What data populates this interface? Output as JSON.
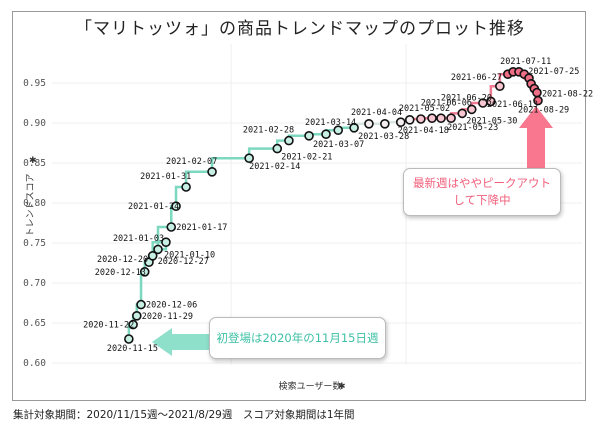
{
  "title": "「マリトッツォ」の商品トレンドマップのプロット推移",
  "footer": "集計対象期間：2020/11/15週〜2021/8/29週　スコア対象期間は1年間",
  "annotations": {
    "right_note": "最新週はややピークアウト\nして下降中",
    "left_note": "初登場は2020年の11月15日週"
  },
  "colors": {
    "early_line": "#7dd8c0",
    "early_fill": "#c8efe3",
    "late_line": "#f07a92",
    "late_fill": "#f7c6d0",
    "peak_fill": "#ef6f86",
    "arrow_left": "#8fe0cb",
    "arrow_right": "#f9788f"
  },
  "chart_data": {
    "type": "line",
    "title": "「マリトッツォ」の商品トレンドマップのプロット推移",
    "xlabel": "検索ユーザー数",
    "ylabel": "トレンドスコア",
    "xlim": [
      0,
      100
    ],
    "ylim": [
      0.6,
      0.975
    ],
    "yticks": [
      "0.60",
      "0.65",
      "0.70",
      "0.75",
      "0.80",
      "0.85",
      "0.90",
      "0.95"
    ],
    "ytick_values": [
      0.6,
      0.65,
      0.7,
      0.75,
      0.8,
      0.85,
      0.9,
      0.95
    ],
    "xgrid_values": [
      33.8,
      66.8
    ],
    "grid": true,
    "points": [
      {
        "date": "2020-11-15",
        "x": 14.5,
        "y": 0.63,
        "label": true,
        "phase": "early"
      },
      {
        "date": "2020-11-22",
        "x": 15.3,
        "y": 0.648,
        "label": true,
        "phase": "early"
      },
      {
        "date": "2020-11-29",
        "x": 16.0,
        "y": 0.659,
        "label": true,
        "phase": "early"
      },
      {
        "date": "2020-12-06",
        "x": 16.8,
        "y": 0.673,
        "label": true,
        "phase": "early"
      },
      {
        "date": "2020-12-13",
        "x": 17.5,
        "y": 0.714,
        "label": true,
        "phase": "early"
      },
      {
        "date": "2020-12-20",
        "x": 18.3,
        "y": 0.726,
        "label": true,
        "phase": "early"
      },
      {
        "date": "2020-12-27",
        "x": 19.0,
        "y": 0.734,
        "label": true,
        "phase": "early"
      },
      {
        "date": "2021-01-03",
        "x": 21.5,
        "y": 0.751,
        "label": true,
        "phase": "early"
      },
      {
        "date": "2021-01-10",
        "x": 20.0,
        "y": 0.742,
        "label": true,
        "phase": "early"
      },
      {
        "date": "2021-01-17",
        "x": 22.5,
        "y": 0.77,
        "label": true,
        "phase": "early"
      },
      {
        "date": "2021-01-24",
        "x": 23.4,
        "y": 0.796,
        "label": true,
        "phase": "early"
      },
      {
        "date": "2021-01-31",
        "x": 25.3,
        "y": 0.82,
        "label": true,
        "phase": "early"
      },
      {
        "date": "2021-02-07",
        "x": 30.2,
        "y": 0.839,
        "label": true,
        "phase": "early"
      },
      {
        "date": "2021-02-14",
        "x": 37.2,
        "y": 0.856,
        "label": true,
        "phase": "early"
      },
      {
        "date": "2021-02-21",
        "x": 42.5,
        "y": 0.868,
        "label": true,
        "phase": "early"
      },
      {
        "date": "2021-02-28",
        "x": 44.7,
        "y": 0.878,
        "label": true,
        "phase": "early"
      },
      {
        "date": "2021-03-07",
        "x": 48.5,
        "y": 0.884,
        "label": true,
        "phase": "early"
      },
      {
        "date": "2021-03-14",
        "x": 51.7,
        "y": 0.886,
        "label": true,
        "phase": "early"
      },
      {
        "date": "2021-03-21",
        "x": 54.0,
        "y": 0.891,
        "label": false,
        "phase": "early"
      },
      {
        "date": "2021-03-28",
        "x": 57.0,
        "y": 0.894,
        "label": true,
        "phase": "early"
      },
      {
        "date": "2021-04-04",
        "x": 59.8,
        "y": 0.899,
        "label": true,
        "phase": "mid"
      },
      {
        "date": "2021-04-11",
        "x": 62.8,
        "y": 0.899,
        "label": false,
        "phase": "mid"
      },
      {
        "date": "2021-04-18",
        "x": 65.8,
        "y": 0.901,
        "label": true,
        "phase": "mid"
      },
      {
        "date": "2021-04-25",
        "x": 67.5,
        "y": 0.904,
        "label": false,
        "phase": "mid"
      },
      {
        "date": "2021-05-02",
        "x": 69.6,
        "y": 0.905,
        "label": true,
        "phase": "late"
      },
      {
        "date": "2021-05-09",
        "x": 71.7,
        "y": 0.906,
        "label": false,
        "phase": "late"
      },
      {
        "date": "2021-05-16",
        "x": 73.4,
        "y": 0.906,
        "label": false,
        "phase": "late"
      },
      {
        "date": "2021-05-23",
        "x": 75.3,
        "y": 0.906,
        "label": true,
        "phase": "late"
      },
      {
        "date": "2021-05-30",
        "x": 77.4,
        "y": 0.912,
        "label": true,
        "phase": "late"
      },
      {
        "date": "2021-06-06",
        "x": 79.2,
        "y": 0.917,
        "label": true,
        "phase": "late"
      },
      {
        "date": "2021-06-13",
        "x": 81.3,
        "y": 0.925,
        "label": true,
        "phase": "late"
      },
      {
        "date": "2021-06-20",
        "x": 82.8,
        "y": 0.927,
        "label": true,
        "phase": "late"
      },
      {
        "date": "2021-06-27",
        "x": 84.5,
        "y": 0.946,
        "label": true,
        "phase": "late"
      },
      {
        "date": "2021-07-04",
        "x": 86.0,
        "y": 0.961,
        "label": false,
        "phase": "peak"
      },
      {
        "date": "2021-07-11",
        "x": 87.0,
        "y": 0.964,
        "label": true,
        "phase": "peak"
      },
      {
        "date": "2021-07-18",
        "x": 88.1,
        "y": 0.964,
        "label": false,
        "phase": "peak"
      },
      {
        "date": "2021-07-25",
        "x": 89.1,
        "y": 0.961,
        "label": true,
        "phase": "peak"
      },
      {
        "date": "2021-08-01",
        "x": 90.0,
        "y": 0.956,
        "label": false,
        "phase": "peak"
      },
      {
        "date": "2021-08-08",
        "x": 90.4,
        "y": 0.949,
        "label": false,
        "phase": "peak"
      },
      {
        "date": "2021-08-15",
        "x": 91.0,
        "y": 0.943,
        "label": false,
        "phase": "peak"
      },
      {
        "date": "2021-08-22",
        "x": 91.5,
        "y": 0.938,
        "label": true,
        "phase": "peak"
      },
      {
        "date": "2021-08-29",
        "x": 91.7,
        "y": 0.928,
        "label": true,
        "phase": "peak"
      }
    ]
  }
}
